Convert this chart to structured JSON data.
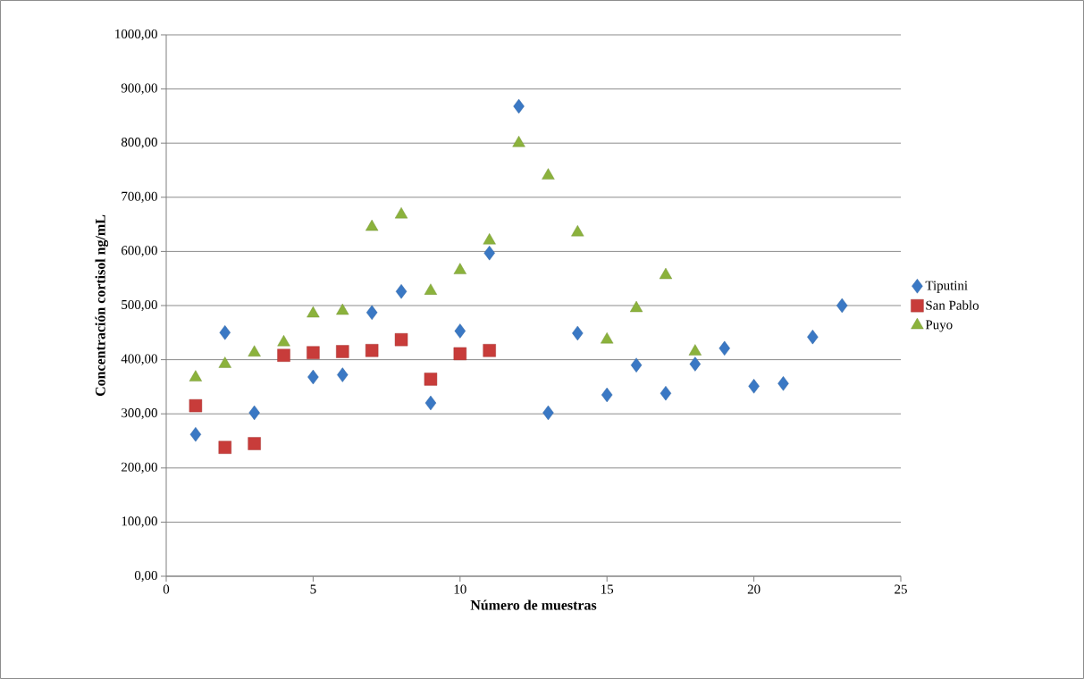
{
  "chart_data": {
    "type": "scatter",
    "xlabel": "Número de muestras",
    "ylabel": "Concentración cortisol ng/mL",
    "xlim": [
      0,
      25
    ],
    "xticks": [
      0,
      5,
      10,
      15,
      20,
      25
    ],
    "ylim": [
      0,
      1000
    ],
    "yticks": [
      {
        "value": 0,
        "label": "0,00"
      },
      {
        "value": 100,
        "label": "100,00"
      },
      {
        "value": 200,
        "label": "200,00"
      },
      {
        "value": 300,
        "label": "300,00"
      },
      {
        "value": 400,
        "label": "400,00"
      },
      {
        "value": 500,
        "label": "500,00"
      },
      {
        "value": 600,
        "label": "600,00"
      },
      {
        "value": 700,
        "label": "700,00"
      },
      {
        "value": 800,
        "label": "800,00"
      },
      {
        "value": 900,
        "label": "900,00"
      },
      {
        "value": 1000,
        "label": "1000,00"
      }
    ],
    "grid": "y",
    "legend": "right",
    "series": [
      {
        "name": "Tiputini",
        "color": "#3a78c4",
        "marker": "diamond",
        "x": [
          1,
          2,
          3,
          4,
          5,
          6,
          7,
          8,
          9,
          10,
          11,
          12,
          13,
          14,
          15,
          16,
          17,
          18,
          19,
          20,
          21,
          22,
          23
        ],
        "values": [
          262,
          450,
          302,
          null,
          368,
          372,
          487,
          526,
          320,
          453,
          597,
          868,
          302,
          449,
          335,
          390,
          338,
          392,
          421,
          351,
          356,
          442,
          500
        ]
      },
      {
        "name": "San Pablo",
        "color": "#c83c3a",
        "marker": "square",
        "x": [
          1,
          2,
          3,
          4,
          5,
          6,
          7,
          8,
          9,
          10,
          11
        ],
        "values": [
          315,
          238,
          245,
          408,
          413,
          415,
          417,
          437,
          364,
          411,
          417
        ]
      },
      {
        "name": "Puyo",
        "color": "#8bb23c",
        "marker": "triangle",
        "x": [
          1,
          2,
          3,
          4,
          5,
          6,
          7,
          8,
          9,
          10,
          11,
          12,
          13,
          14,
          15,
          16,
          17,
          18
        ],
        "values": [
          367,
          392,
          413,
          432,
          485,
          490,
          645,
          668,
          527,
          565,
          620,
          800,
          740,
          635,
          437,
          495,
          556,
          415
        ]
      }
    ]
  }
}
